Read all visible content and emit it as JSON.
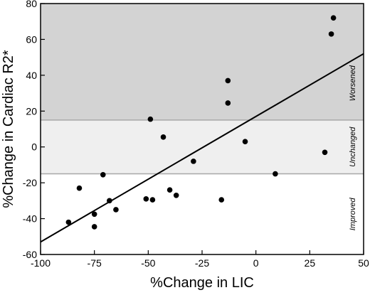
{
  "chart_data": {
    "type": "scatter",
    "title": "",
    "xlabel": "%Change in LIC",
    "ylabel": "%Change in Cardiac R2*",
    "xlim": [
      -100,
      50
    ],
    "ylim": [
      -60,
      80
    ],
    "x_ticks": [
      -100,
      -75,
      -50,
      -25,
      0,
      25,
      50
    ],
    "x_tick_labels": [
      "-100",
      "-75",
      "-50",
      "-25",
      "0",
      "25",
      "50"
    ],
    "y_ticks": [
      -60,
      -40,
      -20,
      0,
      20,
      40,
      60,
      80
    ],
    "y_tick_labels": [
      "-60",
      "-40",
      "-20",
      "0",
      "20",
      "40",
      "60",
      "80"
    ],
    "grid": false,
    "regions": [
      {
        "label": "Worsened",
        "y_from": 15,
        "y_to": 80,
        "color": "#d3d3d3"
      },
      {
        "label": "Unchanged",
        "y_from": -15,
        "y_to": 15,
        "color": "#efefef"
      },
      {
        "label": "Improved",
        "y_from": -60,
        "y_to": -15,
        "color": "#ffffff"
      }
    ],
    "threshold_lines": [
      15,
      -15
    ],
    "threshold_color": "#a8a8a8",
    "regression_line": {
      "x": [
        -100,
        50
      ],
      "y": [
        -53,
        52
      ]
    },
    "points": [
      {
        "x": 36,
        "y": 72
      },
      {
        "x": 35,
        "y": 63
      },
      {
        "x": -13,
        "y": 37
      },
      {
        "x": -13,
        "y": 24.5
      },
      {
        "x": -49,
        "y": 15.5
      },
      {
        "x": -43,
        "y": 5.5
      },
      {
        "x": -5,
        "y": 3
      },
      {
        "x": 32,
        "y": -3
      },
      {
        "x": -29,
        "y": -8
      },
      {
        "x": -71,
        "y": -15.5
      },
      {
        "x": 9,
        "y": -15
      },
      {
        "x": -82,
        "y": -23
      },
      {
        "x": -40,
        "y": -24
      },
      {
        "x": -37,
        "y": -27
      },
      {
        "x": -68,
        "y": -30
      },
      {
        "x": -51,
        "y": -29
      },
      {
        "x": -48,
        "y": -29.5
      },
      {
        "x": -16,
        "y": -29.5
      },
      {
        "x": -65,
        "y": -35
      },
      {
        "x": -75,
        "y": -37.5
      },
      {
        "x": -87,
        "y": -42
      },
      {
        "x": -75,
        "y": -44.5
      }
    ],
    "point_color": "#000000"
  }
}
